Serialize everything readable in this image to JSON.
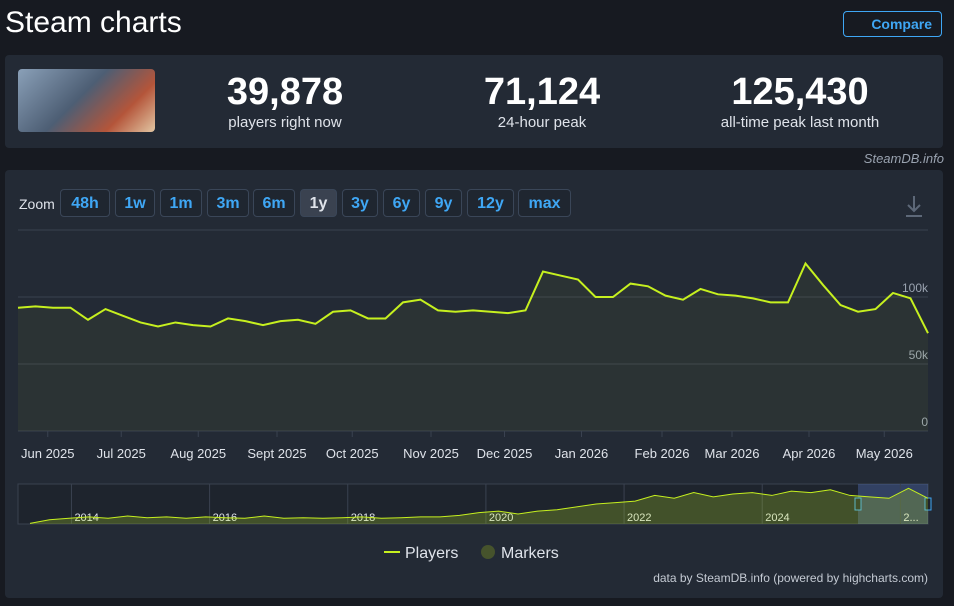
{
  "header": {
    "title": "Steam charts",
    "compare": "Compare"
  },
  "stats": [
    {
      "value": "39,878",
      "label": "players right now"
    },
    {
      "value": "71,124",
      "label": "24-hour peak"
    },
    {
      "value": "125,430",
      "label": "all-time peak last month"
    }
  ],
  "source": "SteamDB.info",
  "zoom": {
    "label": "Zoom",
    "buttons": [
      "48h",
      "1w",
      "1m",
      "3m",
      "6m",
      "1y",
      "3y",
      "6y",
      "9y",
      "12y",
      "max"
    ],
    "selected": "1y"
  },
  "chart_data": {
    "type": "line",
    "series": [
      {
        "name": "Players",
        "color": "#c6f01f",
        "values": [
          92000,
          93000,
          92000,
          92000,
          83000,
          91000,
          86000,
          81000,
          78000,
          81000,
          79000,
          78000,
          84000,
          82000,
          79000,
          82000,
          83000,
          80000,
          89000,
          90000,
          84000,
          84000,
          96000,
          98000,
          90000,
          89000,
          90000,
          89000,
          88000,
          90000,
          119000,
          116000,
          113000,
          100000,
          100000,
          110000,
          108000,
          101000,
          98000,
          106000,
          102000,
          101000,
          99000,
          96000,
          96000,
          125000,
          109000,
          94000,
          89000,
          91000,
          103000,
          99000,
          73000
        ]
      }
    ],
    "markers": {
      "name": "Markers",
      "color": "#46532c"
    },
    "xlim": [
      0,
      52
    ],
    "xticks": [
      {
        "value": 1.7,
        "label": "Jun 2025"
      },
      {
        "value": 5.9,
        "label": "Jul 2025"
      },
      {
        "value": 10.3,
        "label": "Aug 2025"
      },
      {
        "value": 14.8,
        "label": "Sept 2025"
      },
      {
        "value": 19.1,
        "label": "Oct 2025"
      },
      {
        "value": 23.6,
        "label": "Nov 2025"
      },
      {
        "value": 27.8,
        "label": "Dec 2025"
      },
      {
        "value": 32.2,
        "label": "Jan 2026"
      },
      {
        "value": 36.8,
        "label": "Feb 2026"
      },
      {
        "value": 40.8,
        "label": "Mar 2026"
      },
      {
        "value": 45.2,
        "label": "Apr 2026"
      },
      {
        "value": 49.5,
        "label": "May 2026"
      }
    ],
    "ylim": [
      0,
      150000
    ],
    "yticks": [
      0,
      {
        "value": 50000,
        "label": "50k"
      },
      {
        "value": 100000,
        "label": "100k"
      }
    ],
    "grid": true,
    "navigator": {
      "xlim": [
        2013.4,
        2026.4
      ],
      "xticks": [
        2014,
        2016,
        2018,
        2020,
        2022,
        2024,
        {
          "value": 2026,
          "label": "2..."
        }
      ],
      "ylim": [
        0,
        140000
      ],
      "values": [
        2000,
        15000,
        20000,
        25000,
        20000,
        28000,
        22000,
        25000,
        20000,
        25000,
        22000,
        20000,
        28000,
        20000,
        22000,
        20000,
        22000,
        25000,
        20000,
        22000,
        25000,
        25000,
        30000,
        40000,
        45000,
        35000,
        45000,
        50000,
        60000,
        70000,
        75000,
        80000,
        100000,
        90000,
        110000,
        95000,
        105000,
        110000,
        100000,
        115000,
        110000,
        120000,
        100000,
        95000,
        90000,
        125000,
        90000
      ]
    }
  },
  "credits": "data by SteamDB.info (powered by highcharts.com)"
}
